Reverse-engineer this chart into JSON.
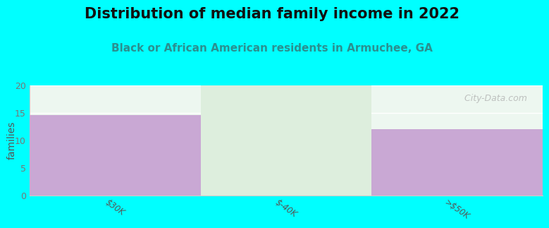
{
  "title": "Distribution of median family income in 2022",
  "subtitle": "Black or African American residents in Armuchee, GA",
  "categories": [
    "$30K",
    "$-40K",
    ">$50K"
  ],
  "values": [
    14.5,
    0,
    12
  ],
  "bar_color": "#c9a8d4",
  "zero_bar_color": "#ddeedd",
  "background_color": "#00ffff",
  "plot_bg_top": "#e8f5ee",
  "plot_bg_bottom": "#f5faf5",
  "ylabel": "families",
  "ylim": [
    0,
    20
  ],
  "yticks": [
    0,
    5,
    10,
    15,
    20
  ],
  "title_fontsize": 15,
  "subtitle_fontsize": 11,
  "subtitle_color": "#2a9090",
  "watermark": "  City-Data.com",
  "grid_color": "#ffffff",
  "tick_label_color": "#555555"
}
